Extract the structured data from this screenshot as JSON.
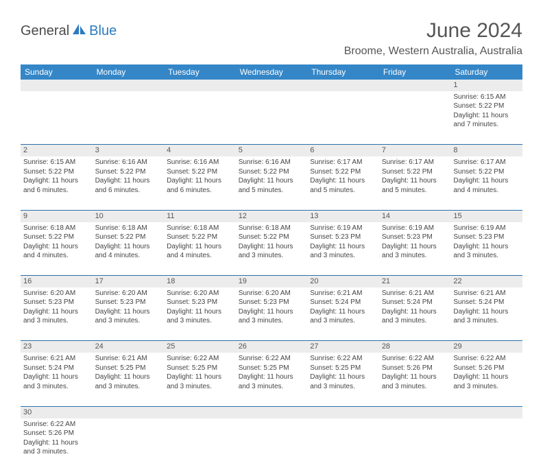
{
  "logo": {
    "textDark": "General",
    "textBlue": "Blue"
  },
  "title": "June 2024",
  "location": "Broome, Western Australia, Australia",
  "colors": {
    "headerBg": "#3486c7",
    "rowDivider": "#2e6fa8",
    "dayNumBg": "#ececec",
    "logoBlue": "#2b7bbf",
    "textGray": "#555"
  },
  "weekdays": [
    "Sunday",
    "Monday",
    "Tuesday",
    "Wednesday",
    "Thursday",
    "Friday",
    "Saturday"
  ],
  "weeks": [
    [
      null,
      null,
      null,
      null,
      null,
      null,
      {
        "n": "1",
        "sr": "6:15 AM",
        "ss": "5:22 PM",
        "dl1": "11 hours",
        "dl2": "and 7 minutes."
      }
    ],
    [
      {
        "n": "2",
        "sr": "6:15 AM",
        "ss": "5:22 PM",
        "dl1": "11 hours",
        "dl2": "and 6 minutes."
      },
      {
        "n": "3",
        "sr": "6:16 AM",
        "ss": "5:22 PM",
        "dl1": "11 hours",
        "dl2": "and 6 minutes."
      },
      {
        "n": "4",
        "sr": "6:16 AM",
        "ss": "5:22 PM",
        "dl1": "11 hours",
        "dl2": "and 6 minutes."
      },
      {
        "n": "5",
        "sr": "6:16 AM",
        "ss": "5:22 PM",
        "dl1": "11 hours",
        "dl2": "and 5 minutes."
      },
      {
        "n": "6",
        "sr": "6:17 AM",
        "ss": "5:22 PM",
        "dl1": "11 hours",
        "dl2": "and 5 minutes."
      },
      {
        "n": "7",
        "sr": "6:17 AM",
        "ss": "5:22 PM",
        "dl1": "11 hours",
        "dl2": "and 5 minutes."
      },
      {
        "n": "8",
        "sr": "6:17 AM",
        "ss": "5:22 PM",
        "dl1": "11 hours",
        "dl2": "and 4 minutes."
      }
    ],
    [
      {
        "n": "9",
        "sr": "6:18 AM",
        "ss": "5:22 PM",
        "dl1": "11 hours",
        "dl2": "and 4 minutes."
      },
      {
        "n": "10",
        "sr": "6:18 AM",
        "ss": "5:22 PM",
        "dl1": "11 hours",
        "dl2": "and 4 minutes."
      },
      {
        "n": "11",
        "sr": "6:18 AM",
        "ss": "5:22 PM",
        "dl1": "11 hours",
        "dl2": "and 4 minutes."
      },
      {
        "n": "12",
        "sr": "6:18 AM",
        "ss": "5:22 PM",
        "dl1": "11 hours",
        "dl2": "and 3 minutes."
      },
      {
        "n": "13",
        "sr": "6:19 AM",
        "ss": "5:23 PM",
        "dl1": "11 hours",
        "dl2": "and 3 minutes."
      },
      {
        "n": "14",
        "sr": "6:19 AM",
        "ss": "5:23 PM",
        "dl1": "11 hours",
        "dl2": "and 3 minutes."
      },
      {
        "n": "15",
        "sr": "6:19 AM",
        "ss": "5:23 PM",
        "dl1": "11 hours",
        "dl2": "and 3 minutes."
      }
    ],
    [
      {
        "n": "16",
        "sr": "6:20 AM",
        "ss": "5:23 PM",
        "dl1": "11 hours",
        "dl2": "and 3 minutes."
      },
      {
        "n": "17",
        "sr": "6:20 AM",
        "ss": "5:23 PM",
        "dl1": "11 hours",
        "dl2": "and 3 minutes."
      },
      {
        "n": "18",
        "sr": "6:20 AM",
        "ss": "5:23 PM",
        "dl1": "11 hours",
        "dl2": "and 3 minutes."
      },
      {
        "n": "19",
        "sr": "6:20 AM",
        "ss": "5:23 PM",
        "dl1": "11 hours",
        "dl2": "and 3 minutes."
      },
      {
        "n": "20",
        "sr": "6:21 AM",
        "ss": "5:24 PM",
        "dl1": "11 hours",
        "dl2": "and 3 minutes."
      },
      {
        "n": "21",
        "sr": "6:21 AM",
        "ss": "5:24 PM",
        "dl1": "11 hours",
        "dl2": "and 3 minutes."
      },
      {
        "n": "22",
        "sr": "6:21 AM",
        "ss": "5:24 PM",
        "dl1": "11 hours",
        "dl2": "and 3 minutes."
      }
    ],
    [
      {
        "n": "23",
        "sr": "6:21 AM",
        "ss": "5:24 PM",
        "dl1": "11 hours",
        "dl2": "and 3 minutes."
      },
      {
        "n": "24",
        "sr": "6:21 AM",
        "ss": "5:25 PM",
        "dl1": "11 hours",
        "dl2": "and 3 minutes."
      },
      {
        "n": "25",
        "sr": "6:22 AM",
        "ss": "5:25 PM",
        "dl1": "11 hours",
        "dl2": "and 3 minutes."
      },
      {
        "n": "26",
        "sr": "6:22 AM",
        "ss": "5:25 PM",
        "dl1": "11 hours",
        "dl2": "and 3 minutes."
      },
      {
        "n": "27",
        "sr": "6:22 AM",
        "ss": "5:25 PM",
        "dl1": "11 hours",
        "dl2": "and 3 minutes."
      },
      {
        "n": "28",
        "sr": "6:22 AM",
        "ss": "5:26 PM",
        "dl1": "11 hours",
        "dl2": "and 3 minutes."
      },
      {
        "n": "29",
        "sr": "6:22 AM",
        "ss": "5:26 PM",
        "dl1": "11 hours",
        "dl2": "and 3 minutes."
      }
    ],
    [
      {
        "n": "30",
        "sr": "6:22 AM",
        "ss": "5:26 PM",
        "dl1": "11 hours",
        "dl2": "and 3 minutes."
      },
      null,
      null,
      null,
      null,
      null,
      null
    ]
  ],
  "labels": {
    "sunrise": "Sunrise:",
    "sunset": "Sunset:",
    "daylight": "Daylight:"
  }
}
